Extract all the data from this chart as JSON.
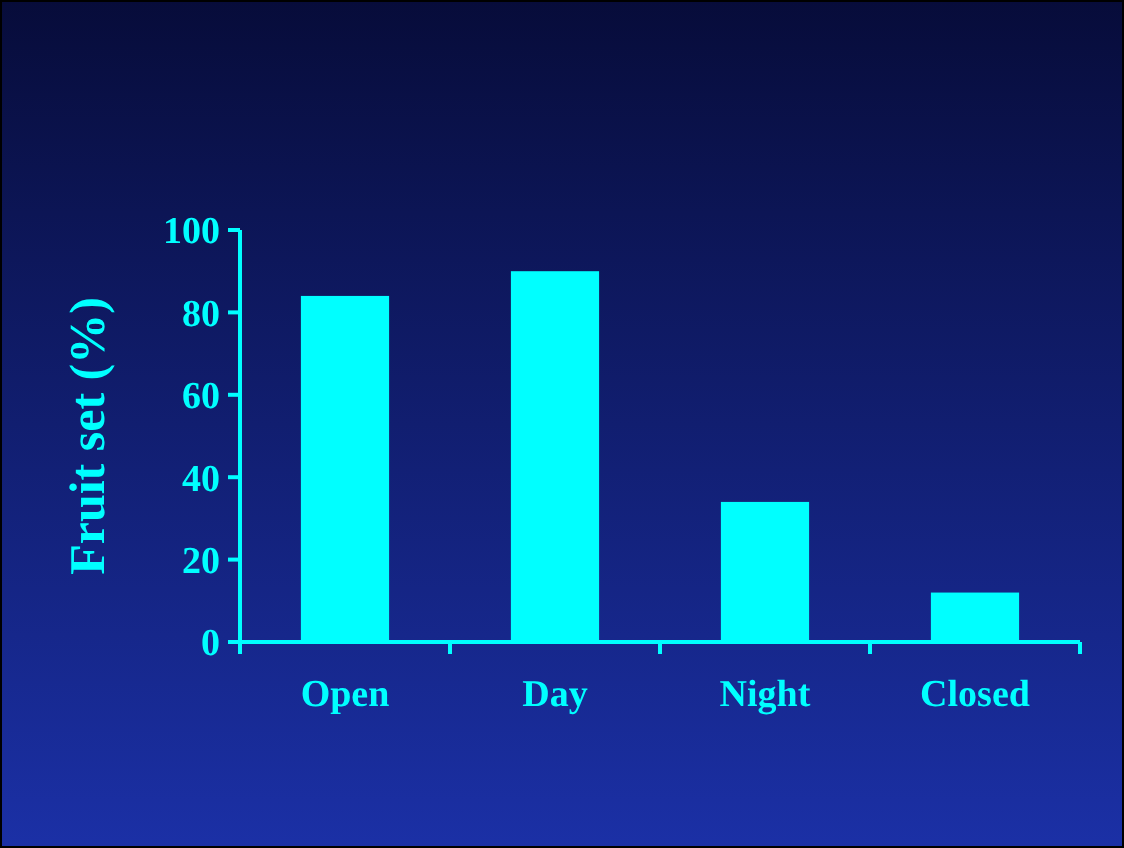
{
  "chart_data": {
    "type": "bar",
    "ylabel": "Fruit set (%)",
    "categories": [
      "Open",
      "Day",
      "Night",
      "Closed"
    ],
    "values": [
      84,
      90,
      34,
      12
    ],
    "color": "#00ffff",
    "ylim": [
      0,
      100
    ],
    "yticks": [
      0,
      20,
      40,
      60,
      80,
      100
    ],
    "grid": false
  }
}
